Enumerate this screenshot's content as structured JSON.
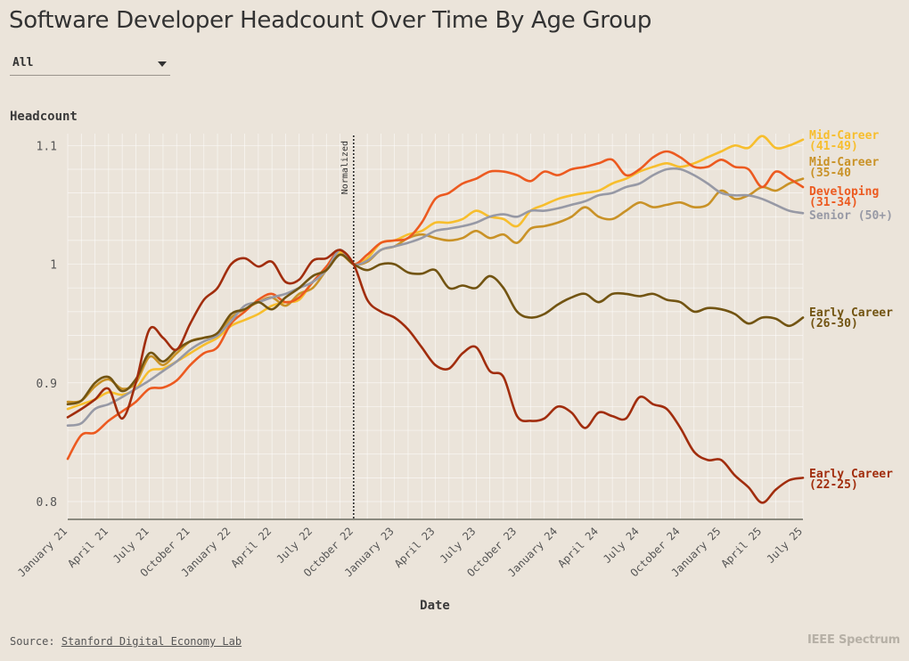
{
  "title": "Software Developer Headcount Over Time By Age Group",
  "filter": {
    "selected": "All"
  },
  "source": {
    "label": "Source:",
    "link_text": "Stanford Digital Economy Lab"
  },
  "brand": "IEEE Spectrum",
  "chart_data": {
    "type": "line",
    "ylabel": "Headcount",
    "xlabel": "Date",
    "ylim": [
      0.785,
      1.11
    ],
    "yticks": [
      0.8,
      0.9,
      1,
      1.1
    ],
    "ytick_labels": [
      "0.8",
      "0.9",
      "1",
      "1.1"
    ],
    "xlim": [
      0,
      54
    ],
    "x_tick_positions": [
      0,
      3,
      6,
      9,
      12,
      15,
      18,
      21,
      24,
      27,
      30,
      33,
      36,
      39,
      42,
      45,
      48,
      51,
      54
    ],
    "x_tick_labels": [
      "January 21",
      "April 21",
      "July 21",
      "October 21",
      "January 22",
      "April 22",
      "July 22",
      "October 22",
      "January 23",
      "April 23",
      "July 23",
      "October 23",
      "January 24",
      "April 24",
      "July 24",
      "October 24",
      "January 25",
      "April 25",
      "July 25"
    ],
    "x_months": [
      "Jan 2021",
      "Feb 2021",
      "Mar 2021",
      "Apr 2021",
      "May 2021",
      "Jun 2021",
      "Jul 2021",
      "Aug 2021",
      "Sep 2021",
      "Oct 2021",
      "Nov 2021",
      "Dec 2021",
      "Jan 2022",
      "Feb 2022",
      "Mar 2022",
      "Apr 2022",
      "May 2022",
      "Jun 2022",
      "Jul 2022",
      "Aug 2022",
      "Sep 2022",
      "Oct 2022",
      "Nov 2022",
      "Dec 2022",
      "Jan 2023",
      "Feb 2023",
      "Mar 2023",
      "Apr 2023",
      "May 2023",
      "Jun 2023",
      "Jul 2023",
      "Aug 2023",
      "Sep 2023",
      "Oct 2023",
      "Nov 2023",
      "Dec 2023",
      "Jan 2024",
      "Feb 2024",
      "Mar 2024",
      "Apr 2024",
      "May 2024",
      "Jun 2024",
      "Jul 2024",
      "Aug 2024",
      "Sep 2024",
      "Oct 2024",
      "Nov 2024",
      "Dec 2024",
      "Jan 2025",
      "Feb 2025",
      "Mar 2025",
      "Apr 2025",
      "May 2025",
      "Jun 2025",
      "Jul 2025"
    ],
    "annotation": {
      "label": "Normalized",
      "month": "Oct 2022"
    },
    "grid": true,
    "series": [
      {
        "name": "Mid-Career (41-49)",
        "label_lines": [
          "Mid-Career",
          "(41-49)"
        ],
        "color": "#f7be2d",
        "values": [
          0.878,
          0.882,
          0.886,
          0.892,
          0.89,
          0.895,
          0.91,
          0.912,
          0.918,
          0.925,
          0.932,
          0.938,
          0.948,
          0.953,
          0.958,
          0.965,
          0.968,
          0.97,
          0.985,
          0.995,
          1.01,
          1.0,
          1.005,
          1.018,
          1.02,
          1.025,
          1.028,
          1.035,
          1.035,
          1.038,
          1.045,
          1.04,
          1.038,
          1.032,
          1.045,
          1.05,
          1.055,
          1.058,
          1.06,
          1.062,
          1.068,
          1.072,
          1.078,
          1.082,
          1.085,
          1.082,
          1.085,
          1.09,
          1.095,
          1.1,
          1.098,
          1.108,
          1.098,
          1.1,
          1.105
        ]
      },
      {
        "name": "Mid-Career (35-40)",
        "label_lines": [
          "Mid-Career",
          "(35-40"
        ],
        "color": "#c99227",
        "values": [
          0.884,
          0.885,
          0.897,
          0.903,
          0.895,
          0.9,
          0.922,
          0.915,
          0.925,
          0.935,
          0.938,
          0.94,
          0.955,
          0.962,
          0.968,
          0.972,
          0.965,
          0.975,
          0.98,
          0.995,
          1.008,
          1.0,
          1.002,
          1.012,
          1.015,
          1.022,
          1.025,
          1.022,
          1.02,
          1.022,
          1.028,
          1.022,
          1.025,
          1.018,
          1.03,
          1.032,
          1.035,
          1.04,
          1.048,
          1.04,
          1.038,
          1.045,
          1.052,
          1.048,
          1.05,
          1.052,
          1.048,
          1.05,
          1.062,
          1.055,
          1.058,
          1.065,
          1.062,
          1.068,
          1.072
        ]
      },
      {
        "name": "Developing (31-34)",
        "label_lines": [
          "Developing",
          "(31-34)"
        ],
        "color": "#ec5a20",
        "values": [
          0.836,
          0.856,
          0.858,
          0.868,
          0.876,
          0.884,
          0.895,
          0.896,
          0.902,
          0.915,
          0.925,
          0.93,
          0.95,
          0.96,
          0.97,
          0.975,
          0.968,
          0.972,
          0.985,
          0.998,
          1.012,
          1.0,
          1.008,
          1.018,
          1.02,
          1.022,
          1.035,
          1.055,
          1.06,
          1.068,
          1.072,
          1.078,
          1.078,
          1.075,
          1.07,
          1.078,
          1.075,
          1.08,
          1.082,
          1.085,
          1.088,
          1.075,
          1.08,
          1.09,
          1.095,
          1.09,
          1.082,
          1.082,
          1.088,
          1.082,
          1.08,
          1.065,
          1.078,
          1.072,
          1.065
        ]
      },
      {
        "name": "Senior (50+)",
        "label_lines": [
          "Senior (50+)"
        ],
        "color": "#9799a5",
        "values": [
          0.864,
          0.866,
          0.878,
          0.882,
          0.888,
          0.895,
          0.902,
          0.91,
          0.918,
          0.928,
          0.935,
          0.94,
          0.952,
          0.965,
          0.968,
          0.972,
          0.975,
          0.98,
          0.985,
          0.995,
          1.012,
          1.0,
          1.003,
          1.012,
          1.015,
          1.018,
          1.022,
          1.028,
          1.03,
          1.032,
          1.035,
          1.04,
          1.042,
          1.04,
          1.045,
          1.045,
          1.047,
          1.05,
          1.053,
          1.058,
          1.06,
          1.065,
          1.068,
          1.075,
          1.08,
          1.08,
          1.075,
          1.068,
          1.06,
          1.058,
          1.058,
          1.055,
          1.05,
          1.045,
          1.043
        ]
      },
      {
        "name": "Early Career (26-30)",
        "label_lines": [
          "Early Career",
          "(26-30)"
        ],
        "color": "#725412",
        "values": [
          0.882,
          0.885,
          0.9,
          0.905,
          0.893,
          0.903,
          0.925,
          0.918,
          0.928,
          0.935,
          0.938,
          0.942,
          0.958,
          0.962,
          0.968,
          0.962,
          0.972,
          0.98,
          0.99,
          0.995,
          1.008,
          1.0,
          0.995,
          1.0,
          1.0,
          0.993,
          0.992,
          0.995,
          0.98,
          0.982,
          0.98,
          0.99,
          0.98,
          0.96,
          0.955,
          0.958,
          0.966,
          0.972,
          0.975,
          0.968,
          0.975,
          0.975,
          0.973,
          0.975,
          0.97,
          0.968,
          0.96,
          0.963,
          0.962,
          0.958,
          0.95,
          0.955,
          0.954,
          0.948,
          0.955
        ]
      },
      {
        "name": "Early Career (22-25)",
        "label_lines": [
          "Early Career",
          "(22-25)"
        ],
        "color": "#a12d0d",
        "values": [
          0.871,
          0.878,
          0.886,
          0.895,
          0.87,
          0.9,
          0.945,
          0.938,
          0.928,
          0.95,
          0.97,
          0.98,
          1.0,
          1.005,
          0.998,
          1.002,
          0.985,
          0.987,
          1.003,
          1.005,
          1.012,
          1.0,
          0.97,
          0.96,
          0.955,
          0.945,
          0.93,
          0.915,
          0.912,
          0.925,
          0.93,
          0.91,
          0.905,
          0.872,
          0.868,
          0.87,
          0.88,
          0.875,
          0.862,
          0.875,
          0.872,
          0.87,
          0.888,
          0.882,
          0.878,
          0.862,
          0.842,
          0.835,
          0.835,
          0.822,
          0.812,
          0.799,
          0.81,
          0.818,
          0.82
        ]
      }
    ]
  }
}
